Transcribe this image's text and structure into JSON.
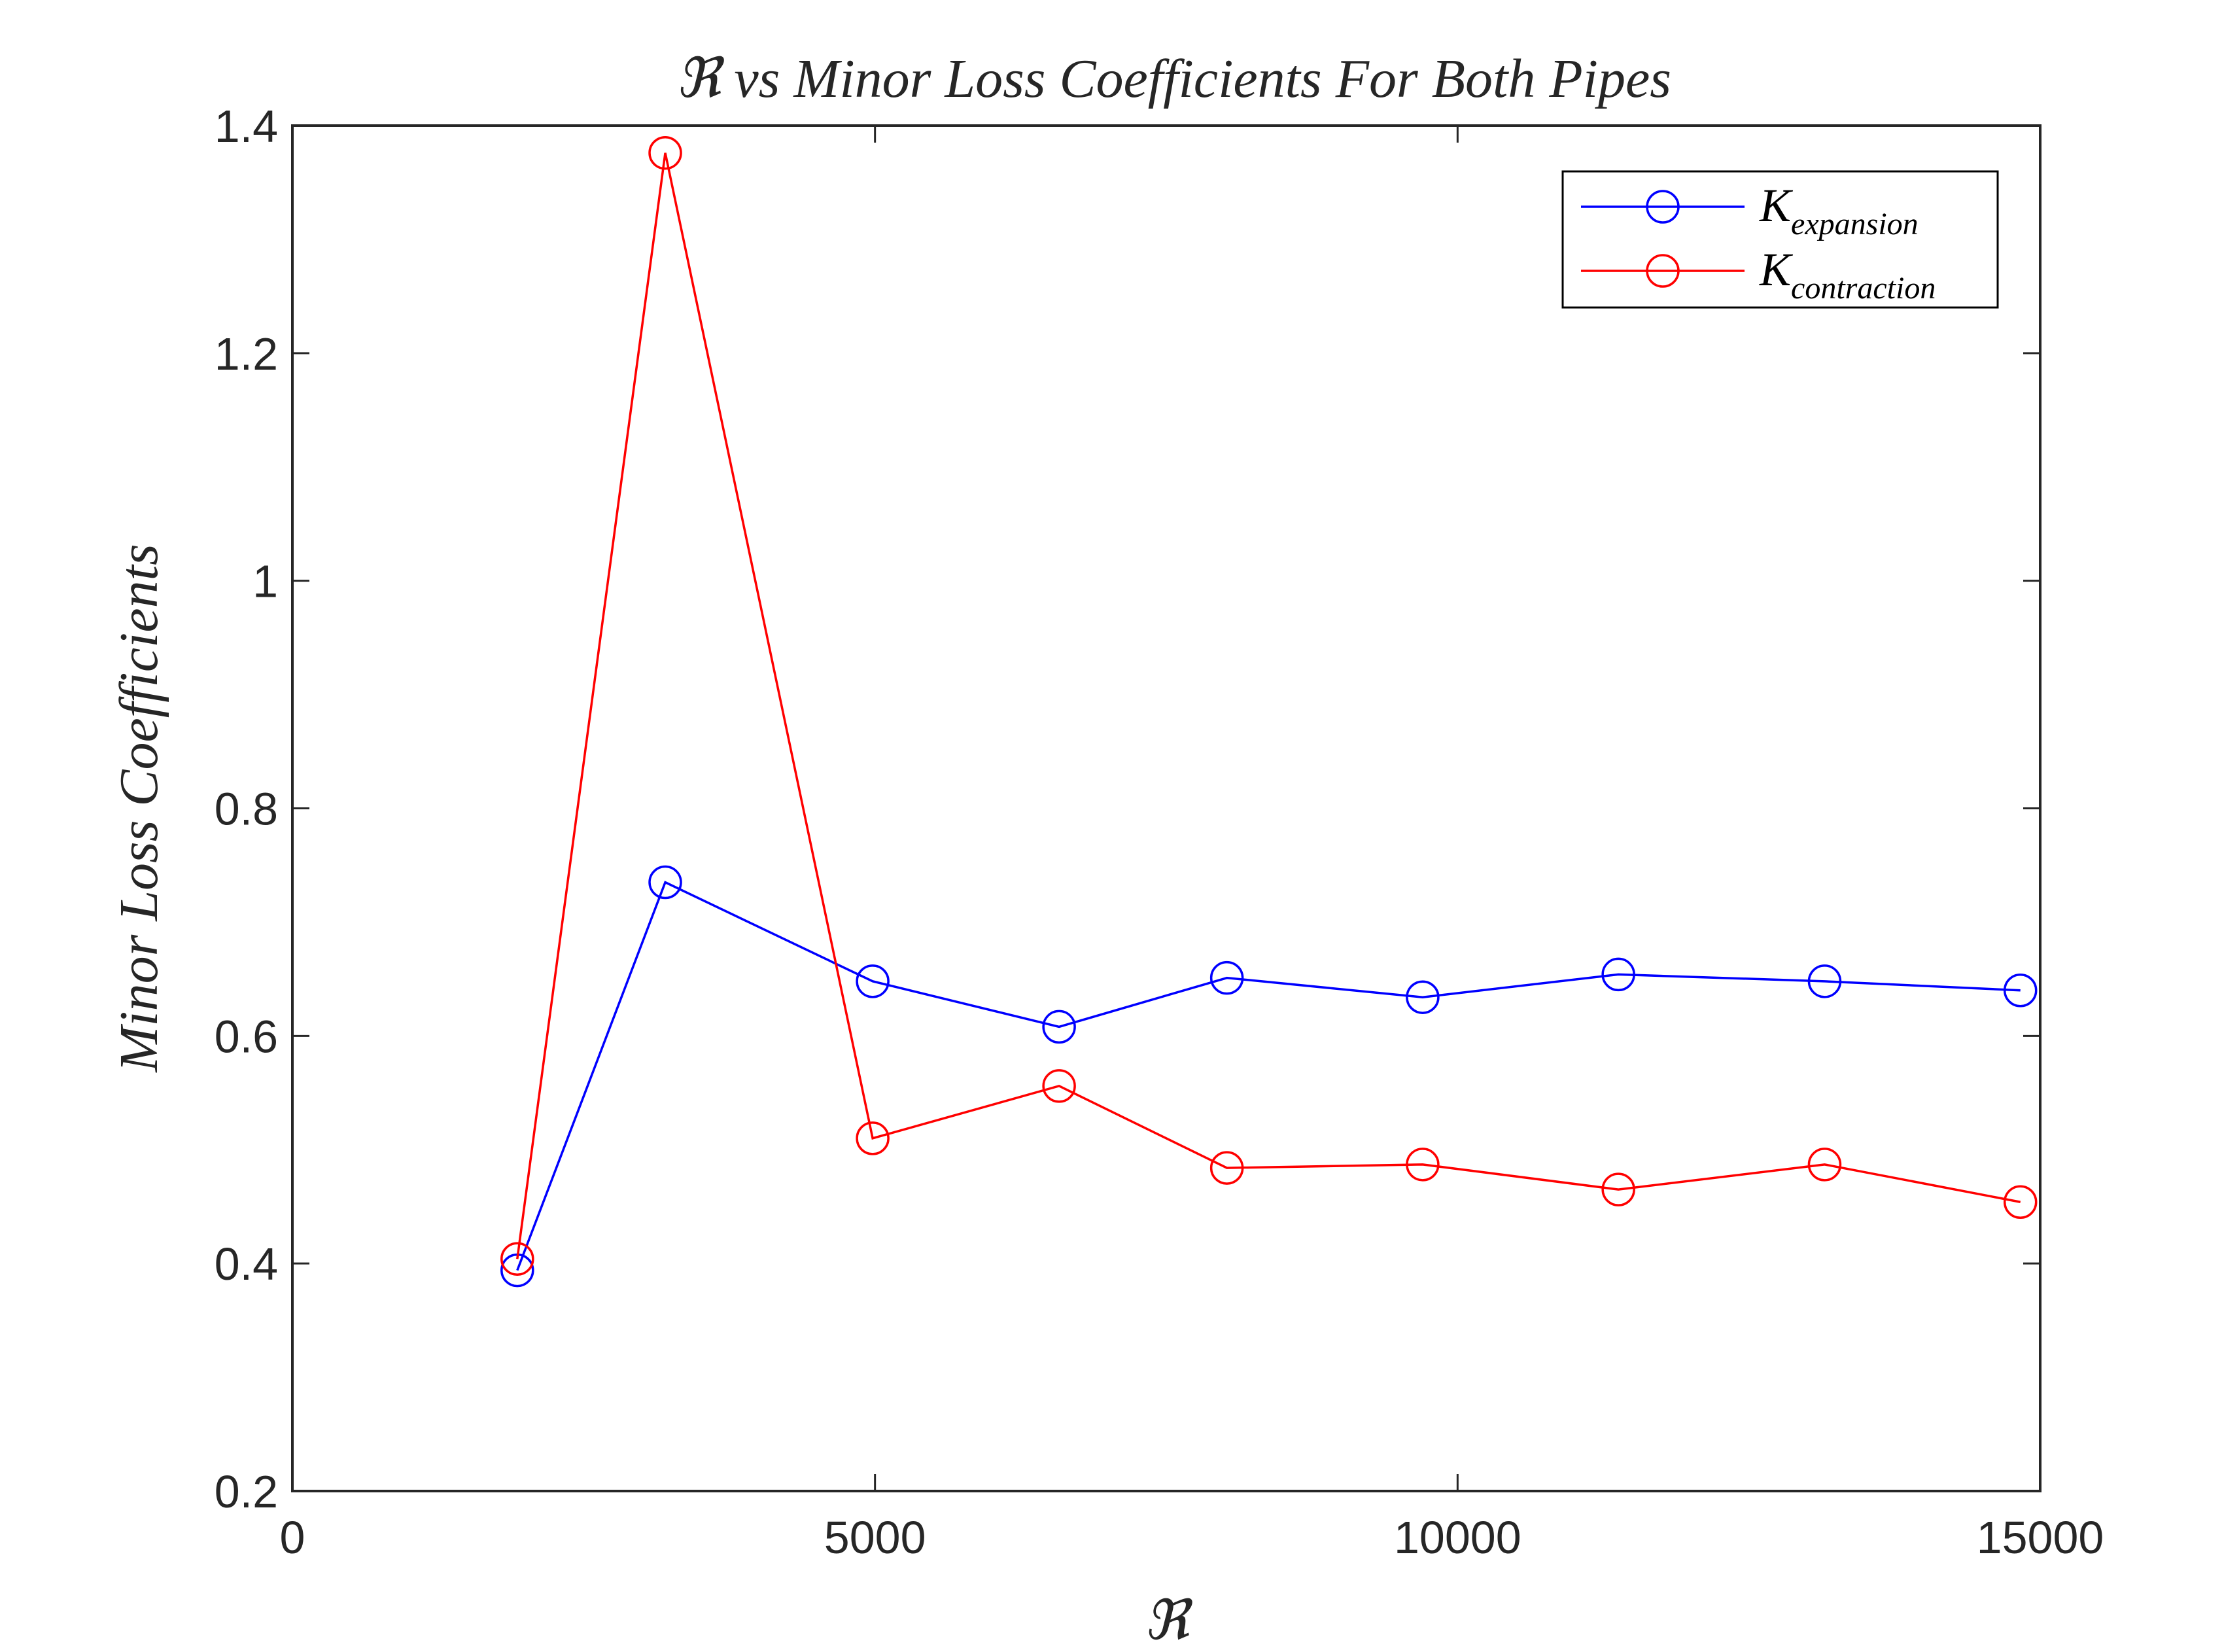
{
  "chart_data": {
    "type": "line",
    "title": "ℜ vs Minor Loss Coefficients For Both Pipes",
    "xlabel": "ℜ",
    "ylabel": "Minor Loss Coefficients",
    "xlim": [
      0,
      15000
    ],
    "ylim": [
      0.2,
      1.4
    ],
    "xticks": [
      0,
      5000,
      10000,
      15000
    ],
    "xtick_labels": [
      "0",
      "5000",
      "10000",
      "15000"
    ],
    "yticks": [
      0.2,
      0.4,
      0.6,
      0.8,
      1.0,
      1.2,
      1.4
    ],
    "ytick_labels": [
      "0.2",
      "0.4",
      "0.6",
      "0.8",
      "1",
      "1.2",
      "1.4"
    ],
    "grid": false,
    "legend_position": "top-right",
    "series": [
      {
        "name_base": "K",
        "name_sub": "expansion",
        "color": "#0000ff",
        "marker": "circle",
        "x": [
          1930,
          3200,
          4980,
          6580,
          8020,
          9700,
          11380,
          13150,
          14830
        ],
        "y": [
          0.394,
          0.735,
          0.648,
          0.608,
          0.651,
          0.634,
          0.654,
          0.648,
          0.64
        ]
      },
      {
        "name_base": "K",
        "name_sub": "contraction",
        "color": "#ff0000",
        "marker": "circle",
        "x": [
          1930,
          3200,
          4980,
          6580,
          8020,
          9700,
          11380,
          13150,
          14830
        ],
        "y": [
          0.404,
          1.376,
          0.51,
          0.556,
          0.484,
          0.487,
          0.465,
          0.487,
          0.454
        ]
      }
    ]
  }
}
